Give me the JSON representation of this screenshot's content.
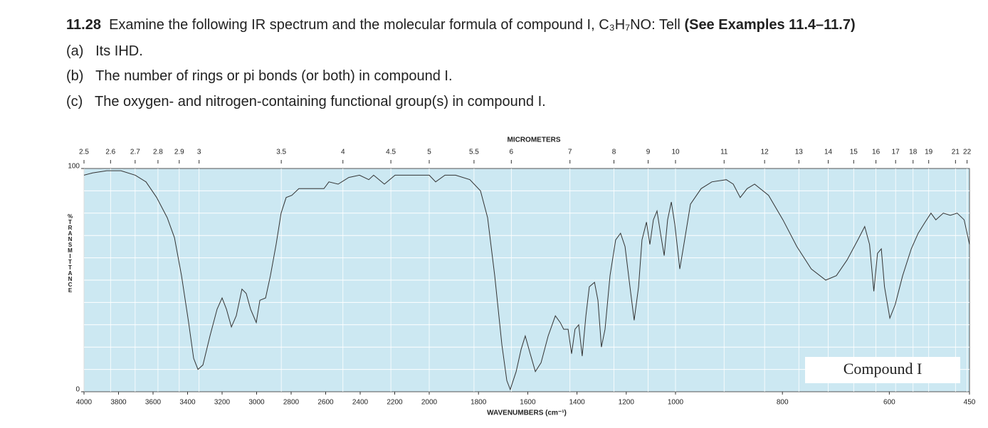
{
  "question": {
    "number": "11.28",
    "text": "Examine the following IR spectrum and the molecular formula of compound I, C₃H₇NO: Tell",
    "reference": "(See Examples 11.4–11.7)",
    "parts": [
      {
        "label": "(a)",
        "text": "Its IHD."
      },
      {
        "label": "(b)",
        "text": "The number of rings or pi bonds (or both) in compound I."
      },
      {
        "label": "(c)",
        "text": "The oxygen- and nitrogen-containing functional group(s) in compound I."
      }
    ]
  },
  "chart_data": {
    "type": "line",
    "legend_text": "Compound I",
    "xlabel": "WAVENUMBERS (cm⁻¹)",
    "x2label": "MICROMETERS",
    "ylabel": "%TRANSMITTANCE",
    "color": "#333333",
    "background": "#cce8f2",
    "xlim": [
      4000,
      450
    ],
    "xticks": [
      4000,
      3800,
      3600,
      3400,
      3200,
      3000,
      2800,
      2600,
      2400,
      2200,
      2000,
      1800,
      1600,
      1400,
      1200,
      1000,
      800,
      600,
      450
    ],
    "x2ticks": [
      2.5,
      2.6,
      2.7,
      2.8,
      2.9,
      3,
      3.5,
      4,
      4.5,
      5,
      5.5,
      6,
      7,
      8,
      9,
      10,
      11,
      12,
      13,
      14,
      15,
      16,
      17,
      18,
      19,
      21,
      22
    ],
    "ylim": [
      0,
      100
    ],
    "yticks": [
      0,
      100
    ],
    "ygrid": [
      10,
      20,
      30,
      40,
      50,
      60,
      70,
      80,
      90
    ],
    "x": [
      4000,
      3951,
      3868,
      3786,
      3703,
      3641,
      3579,
      3518,
      3476,
      3435,
      3394,
      3365,
      3340,
      3311,
      3270,
      3229,
      3200,
      3175,
      3146,
      3118,
      3085,
      3060,
      3035,
      3002,
      2981,
      2948,
      2920,
      2887,
      2858,
      2829,
      2796,
      2755,
      2672,
      2610,
      2581,
      2528,
      2466,
      2404,
      2350,
      2322,
      2260,
      2198,
      2115,
      2054,
      2000,
      1974,
      1936,
      1893,
      1835,
      1792,
      1763,
      1734,
      1705,
      1685,
      1671,
      1647,
      1627,
      1610,
      1590,
      1569,
      1546,
      1517,
      1488,
      1468,
      1454,
      1436,
      1422,
      1408,
      1393,
      1379,
      1364,
      1350,
      1329,
      1315,
      1301,
      1286,
      1266,
      1243,
      1223,
      1205,
      1185,
      1168,
      1150,
      1136,
      1118,
      1104,
      1090,
      1075,
      1061,
      1046,
      1032,
      1017,
      1003,
      992,
      983,
      972,
      952,
      932,
      905,
      892,
      879,
      866,
      852,
      826,
      799,
      773,
      746,
      719,
      699,
      679,
      659,
      646,
      637,
      629,
      622,
      615,
      609,
      599,
      589,
      575,
      559,
      546,
      533,
      522,
      513,
      499,
      486,
      473,
      460,
      450
    ],
    "values": [
      97,
      98,
      99,
      99,
      97,
      94,
      87,
      78,
      69,
      52,
      31,
      15,
      10,
      12,
      25,
      37,
      42,
      37,
      29,
      34,
      46,
      44,
      37,
      31,
      41,
      42,
      52,
      66,
      80,
      87,
      88,
      91,
      91,
      91,
      94,
      93,
      96,
      97,
      95,
      97,
      93,
      97,
      97,
      97,
      97,
      94,
      97,
      97,
      95,
      90,
      78,
      52,
      21,
      5,
      1,
      9,
      19,
      25,
      17,
      9,
      13,
      25,
      34,
      31,
      28,
      28,
      17,
      28,
      30,
      16,
      34,
      47,
      49,
      41,
      20,
      28,
      52,
      68,
      71,
      65,
      47,
      32,
      47,
      68,
      76,
      66,
      77,
      81,
      71,
      61,
      77,
      85,
      75,
      55,
      68,
      84,
      91,
      94,
      95,
      93,
      87,
      91,
      93,
      88,
      77,
      65,
      55,
      50,
      52,
      59,
      68,
      74,
      66,
      45,
      62,
      64,
      47,
      33,
      39,
      52,
      64,
      71,
      76,
      80,
      77,
      80,
      79,
      80,
      77,
      66
    ]
  }
}
